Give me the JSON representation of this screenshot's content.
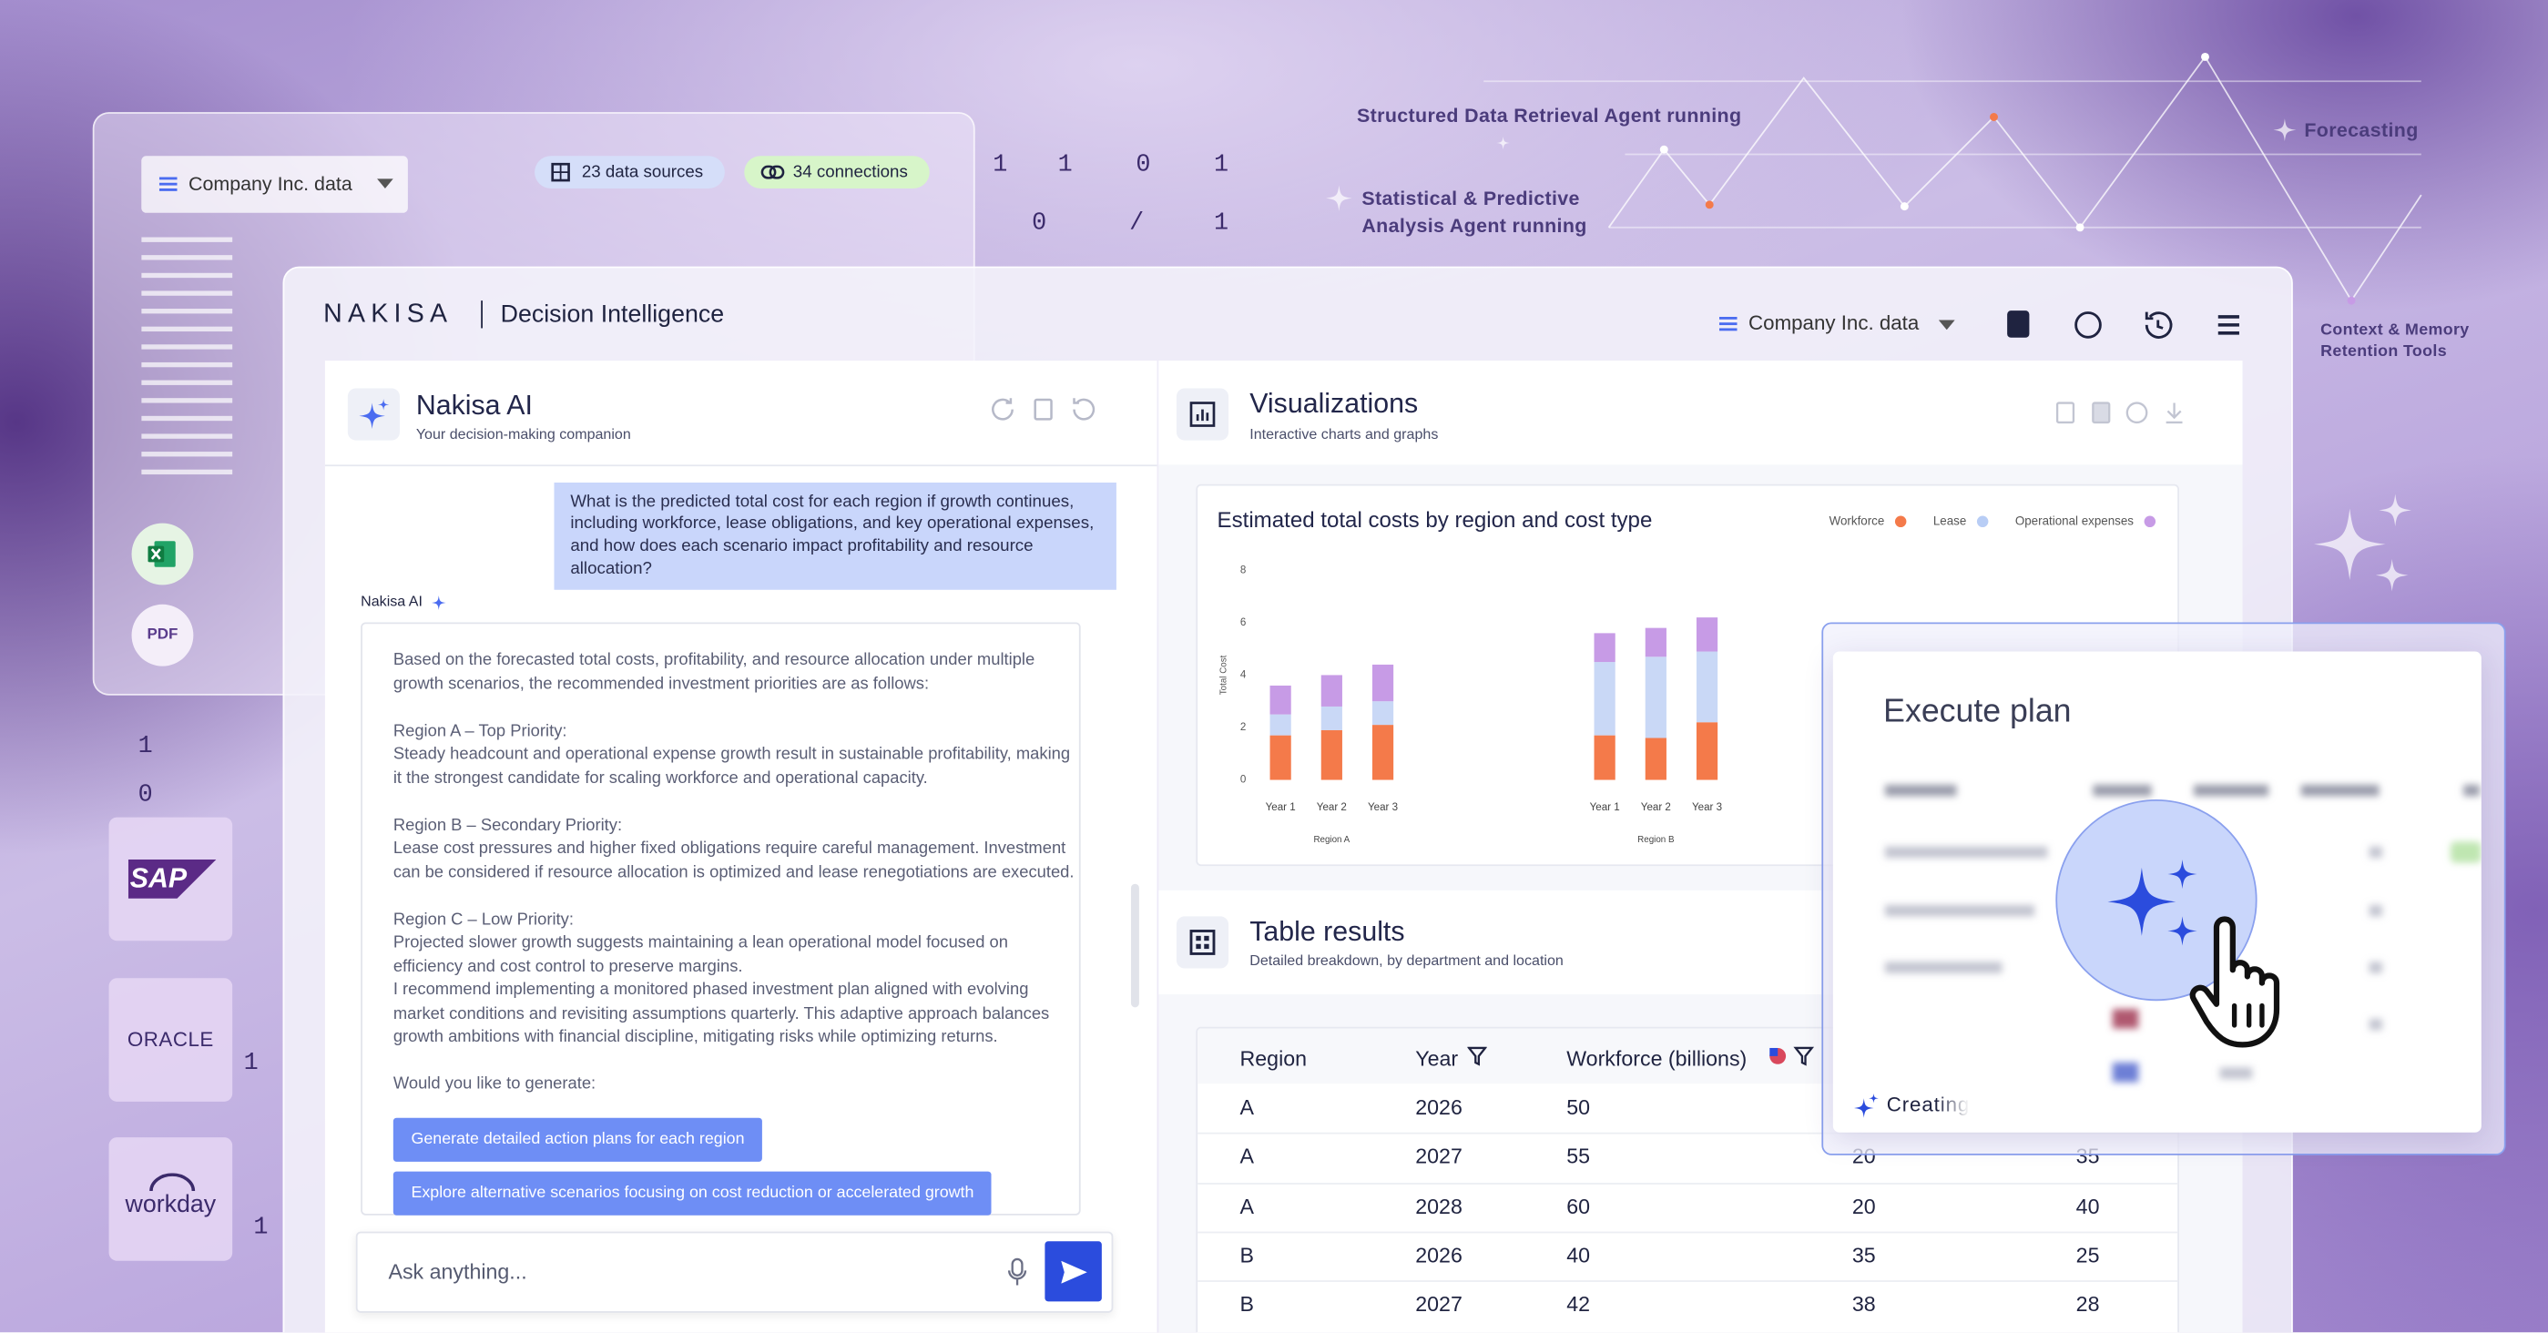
{
  "background": {
    "agents": [
      "Structured Data Retrieval Agent running",
      "Statistical & Predictive Analysis Agent running",
      "Forecasting",
      "Context & Memory Retention Tools"
    ],
    "binary": [
      "1",
      "1",
      "0",
      "1",
      "0",
      "/",
      "1",
      "1",
      "0",
      "1",
      "1"
    ]
  },
  "back_panel": {
    "dropdown": "Company Inc. data",
    "badges": [
      "23 data sources",
      "34 connections"
    ],
    "files": [
      "PDF"
    ]
  },
  "integrations": [
    "SAP",
    "ORACLE",
    "workday"
  ],
  "app": {
    "brand": "NAKISA",
    "product": "Decision Intelligence",
    "dataset": "Company Inc. data"
  },
  "assistant": {
    "title": "Nakisa AI",
    "subtitle": "Your decision-making companion",
    "question": "What is the predicted total cost for each region if growth continues, including workforce, lease obligations, and key operational expenses, and how does each scenario impact profitability and resource allocation?",
    "sender": "Nakisa AI",
    "answer": {
      "intro": "Based on the forecasted total costs, profitability, and resource allocation under multiple growth scenarios, the recommended investment priorities are as follows:",
      "priorities": [
        {
          "heading": "Region A – Top Priority:",
          "text": "Steady headcount and operational expense growth result in sustainable profitability, making it the strongest candidate for scaling workforce and operational capacity."
        },
        {
          "heading": "Region B – Secondary Priority:",
          "text": "Lease cost pressures and higher fixed obligations require careful management. Investment can be considered if resource allocation is optimized and lease renegotiations are executed."
        },
        {
          "heading": "Region C – Low Priority:",
          "text": "Projected slower growth suggests maintaining a lean operational model focused on efficiency and cost control to preserve margins."
        }
      ],
      "closing": "I recommend implementing a monitored phased investment plan aligned with evolving market conditions and revisiting assumptions quarterly. This adaptive approach balances growth ambitions with financial discipline, mitigating risks while optimizing returns.",
      "prompt": "Would you like to generate:"
    },
    "actions": [
      "Generate detailed action plans for each region",
      "Explore alternative scenarios focusing on cost reduction or accelerated growth"
    ],
    "input_placeholder": "Ask anything..."
  },
  "visualizations": {
    "title": "Visualizations",
    "subtitle": "Interactive charts and graphs",
    "chart": {
      "type": "bar",
      "stacked": true,
      "title": "Estimated total costs by region and cost type",
      "y_label": "Total Cost",
      "categories": [
        "Year 1",
        "Year 2",
        "Year 3",
        "Year 1",
        "Year 2",
        "Year 3"
      ],
      "groups": [
        "Region A",
        "Region B"
      ],
      "ylim": [
        0,
        8
      ],
      "yticks": [
        0,
        2,
        4,
        6,
        8
      ],
      "series": [
        {
          "name": "Workforce",
          "color": "#f47a4a",
          "values": [
            1.7,
            1.9,
            2.1,
            1.7,
            1.6,
            2.2
          ]
        },
        {
          "name": "Lease",
          "color": "#c9d8f6",
          "values": [
            0.8,
            0.9,
            0.9,
            2.8,
            3.1,
            2.7
          ]
        },
        {
          "name": "Operational expenses",
          "color": "#c79be6",
          "values": [
            1.1,
            1.2,
            1.4,
            1.1,
            1.1,
            1.3
          ]
        }
      ]
    }
  },
  "table": {
    "title": "Table results",
    "subtitle": "Detailed breakdown, by department and location",
    "columns": [
      "Region",
      "Year",
      "Workforce (billions)"
    ],
    "rows": [
      [
        "A",
        2026,
        50,
        null,
        null
      ],
      [
        "A",
        2027,
        55,
        20,
        35
      ],
      [
        "A",
        2028,
        60,
        20,
        40
      ],
      [
        "B",
        2026,
        40,
        35,
        25
      ],
      [
        "B",
        2027,
        42,
        38,
        28
      ]
    ]
  },
  "execute_plan": {
    "title": "Execute plan",
    "status": "Creating"
  }
}
